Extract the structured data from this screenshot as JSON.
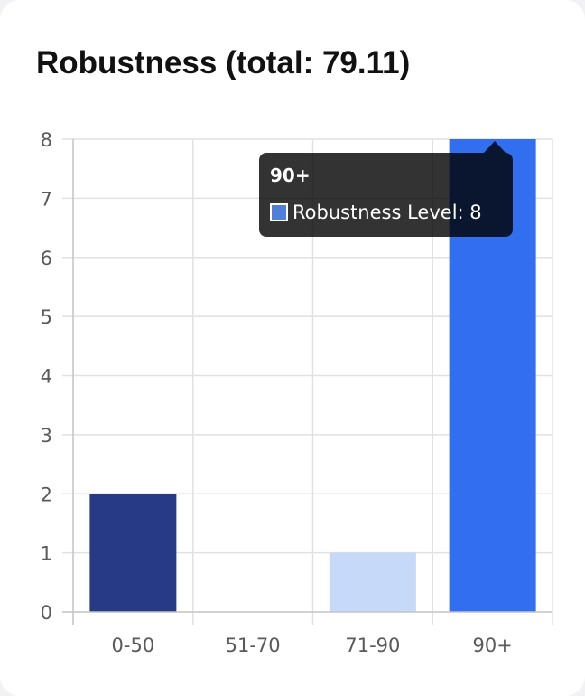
{
  "chart_data": {
    "type": "bar",
    "title": "Robustness (total: 79.11)",
    "categories": [
      "0-50",
      "51-70",
      "71-90",
      "90+"
    ],
    "series": [
      {
        "name": "Robustness Level",
        "values": [
          2,
          0,
          1,
          8
        ],
        "colors": [
          "#273a86",
          "#d0dcf8",
          "#c6d9f8",
          "#326ef0"
        ]
      }
    ],
    "ylim": [
      0,
      8
    ],
    "yticks": [
      0,
      1,
      2,
      3,
      4,
      5,
      6,
      7,
      8
    ],
    "grid": true,
    "tooltip": {
      "category": "90+",
      "label": "Robustness Level: 8",
      "swatch_color": "#4f7fd8"
    }
  }
}
